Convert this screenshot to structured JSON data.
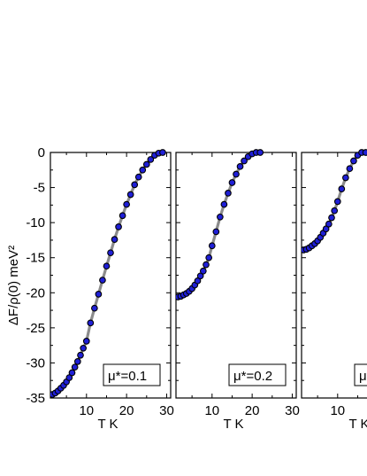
{
  "chart_data": {
    "type": "scatter",
    "ylabel": "ΔF/ρ(0) meV²",
    "ylim": [
      -35,
      0
    ],
    "y_ticks": [
      "0",
      "-5",
      "-10",
      "-15",
      "-20",
      "-25",
      "-30",
      "-35"
    ],
    "panels": [
      {
        "label": "μ*=0.1",
        "xlabel": "T K",
        "xlim": [
          1,
          31
        ],
        "x_ticks": [
          "10",
          "20",
          "30"
        ],
        "line_color": "#8c8c8c",
        "marker_color": "#1f1fd6",
        "series": [
          {
            "x": [
              1.5,
              2.2,
              2.9,
              3.6,
              4.3,
              5.0,
              5.7,
              6.4,
              7.1,
              7.8,
              8.5,
              9.2,
              10.0,
              11.0,
              12.0,
              13.0,
              14.0,
              15.0,
              16.0,
              17.0,
              18.0,
              19.0,
              20.0,
              21.0,
              22.0,
              23.0,
              24.0,
              25.0,
              26.0,
              27.0,
              28.0,
              29.0
            ],
            "y": [
              -34.5,
              -34.3,
              -34.0,
              -33.6,
              -33.2,
              -32.7,
              -32.1,
              -31.4,
              -30.6,
              -29.8,
              -28.9,
              -27.9,
              -26.9,
              -24.3,
              -22.2,
              -20.2,
              -18.2,
              -16.2,
              -14.3,
              -12.4,
              -10.6,
              -9.0,
              -7.4,
              -6.0,
              -4.6,
              -3.5,
              -2.5,
              -1.7,
              -1.0,
              -0.4,
              -0.1,
              0.0
            ]
          }
        ]
      },
      {
        "label": "μ*=0.2",
        "xlabel": "T K",
        "xlim": [
          1,
          31
        ],
        "x_ticks": [
          "10",
          "20",
          "30"
        ],
        "line_color": "#8c8c8c",
        "marker_color": "#1f1fd6",
        "series": [
          {
            "x": [
              1.5,
              2.2,
              2.9,
              3.6,
              4.3,
              5.0,
              5.7,
              6.4,
              7.1,
              7.8,
              8.5,
              9.2,
              10.0,
              11.0,
              12.0,
              13.0,
              14.0,
              15.0,
              16.0,
              17.0,
              18.0,
              19.0,
              20.0,
              21.0,
              22.0
            ],
            "y": [
              -20.6,
              -20.5,
              -20.3,
              -20.1,
              -19.8,
              -19.4,
              -18.9,
              -18.3,
              -17.6,
              -16.9,
              -16.0,
              -15.0,
              -13.3,
              -11.3,
              -9.2,
              -7.4,
              -5.8,
              -4.3,
              -3.1,
              -2.0,
              -1.2,
              -0.6,
              -0.2,
              0.0,
              0.0
            ]
          }
        ]
      },
      {
        "label": "μ*",
        "xlabel": "T K",
        "xlim": [
          1,
          31
        ],
        "x_ticks": [
          "10"
        ],
        "line_color": "#8c8c8c",
        "marker_color": "#1f1fd6",
        "series": [
          {
            "x": [
              1.5,
              2.2,
              2.9,
              3.6,
              4.3,
              5.0,
              5.7,
              6.4,
              7.1,
              7.8,
              8.5,
              9.2,
              10.0,
              11.0,
              12.0,
              13.0,
              14.0,
              15.0,
              16.0,
              17.0
            ],
            "y": [
              -13.9,
              -13.8,
              -13.6,
              -13.3,
              -13.0,
              -12.6,
              -12.1,
              -11.5,
              -10.9,
              -10.2,
              -9.3,
              -8.3,
              -7.0,
              -5.2,
              -3.6,
              -2.3,
              -1.2,
              -0.4,
              0.0,
              0.0
            ]
          }
        ]
      }
    ]
  }
}
